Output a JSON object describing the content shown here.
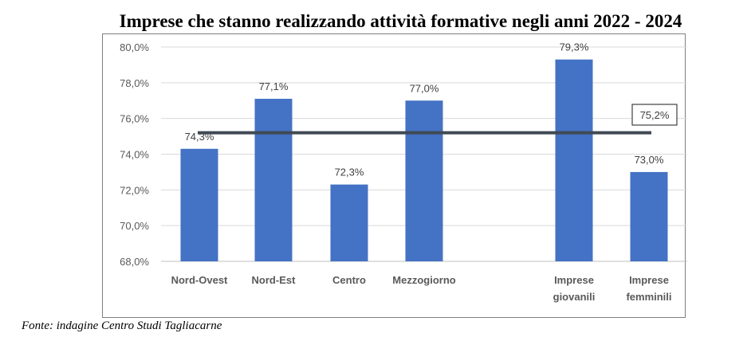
{
  "title": "Imprese che stanno realizzando attività formative negli anni 2022 - 2024",
  "source": "Fonte: indagine Centro Studi Tagliacarne",
  "colors": {
    "bar": "#4472c4",
    "average_line": "#404a54",
    "grid": "#d9d9d9"
  },
  "chart_data": {
    "type": "bar",
    "categories": [
      [
        "Nord-Ovest"
      ],
      [
        "Nord-Est"
      ],
      [
        "Centro"
      ],
      [
        "Mezzogiorno"
      ],
      [
        "Imprese",
        "giovanili"
      ],
      [
        "Imprese",
        "femminili"
      ]
    ],
    "values": [
      74.3,
      77.1,
      72.3,
      77.0,
      79.3,
      73.0
    ],
    "value_labels": [
      "74,3%",
      "77,1%",
      "72,3%",
      "77,0%",
      "79,3%",
      "73,0%"
    ],
    "average": {
      "value": 75.2,
      "label": "75,2%"
    },
    "ylim": [
      68,
      80
    ],
    "yticks": [
      68,
      70,
      72,
      74,
      76,
      78,
      80
    ],
    "ytick_labels": [
      "68,0%",
      "70,0%",
      "72,0%",
      "74,0%",
      "76,0%",
      "78,0%",
      "80,0%"
    ],
    "grid": true,
    "legend": "none"
  }
}
